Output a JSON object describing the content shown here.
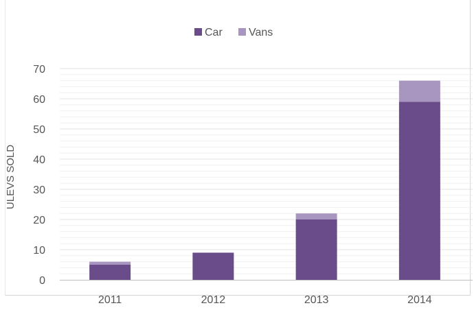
{
  "chart_data": {
    "type": "bar",
    "stacked": true,
    "categories": [
      "2011",
      "2012",
      "2013",
      "2014"
    ],
    "series": [
      {
        "name": "Car",
        "values": [
          5,
          9,
          20,
          59
        ],
        "color": "#6b4c8a"
      },
      {
        "name": "Vans",
        "values": [
          1,
          0,
          2,
          7
        ],
        "color": "#a996c0"
      }
    ],
    "title": "",
    "xlabel": "",
    "ylabel": "ULEVS SOLD",
    "ylim": [
      0,
      70
    ],
    "yticks": [
      "0",
      "10",
      "20",
      "30",
      "40",
      "50",
      "60",
      "70"
    ],
    "grid": true,
    "legend_position": "top-center"
  }
}
